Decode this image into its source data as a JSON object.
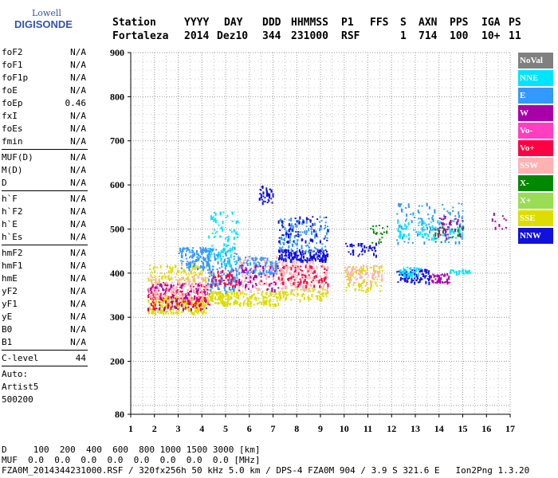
{
  "logo": {
    "line1": "Lowell",
    "line2": "DIGISONDE"
  },
  "header": {
    "labels": [
      "Station",
      "YYYY",
      "DAY",
      "DDD",
      "HHMMSS",
      "P1",
      "FFS",
      "S",
      "AXN",
      "PPS",
      "IGA",
      "PS"
    ],
    "values": [
      "Fortaleza",
      "2014",
      "Dez10",
      "344",
      "231000",
      "RSF",
      "1",
      "714",
      "100",
      "10+",
      "11"
    ]
  },
  "params": {
    "group1": [
      {
        "name": "foF2",
        "value": "N/A"
      },
      {
        "name": "foF1",
        "value": "N/A"
      },
      {
        "name": "foF1p",
        "value": "N/A"
      },
      {
        "name": "foE",
        "value": "N/A"
      },
      {
        "name": "foEp",
        "value": "0.46"
      },
      {
        "name": "fxI",
        "value": "N/A"
      },
      {
        "name": "foEs",
        "value": "N/A"
      },
      {
        "name": "fmin",
        "value": "N/A"
      }
    ],
    "group2": [
      {
        "name": "MUF(D)",
        "value": "N/A"
      },
      {
        "name": "M(D)",
        "value": "N/A"
      },
      {
        "name": "D",
        "value": "N/A"
      }
    ],
    "group3": [
      {
        "name": "h`F",
        "value": "N/A"
      },
      {
        "name": "h`F2",
        "value": "N/A"
      },
      {
        "name": "h`E",
        "value": "N/A"
      },
      {
        "name": "h`Es",
        "value": "N/A"
      }
    ],
    "group4": [
      {
        "name": "hmF2",
        "value": "N/A"
      },
      {
        "name": "hmF1",
        "value": "N/A"
      },
      {
        "name": "hmE",
        "value": "N/A"
      },
      {
        "name": "yF2",
        "value": "N/A"
      },
      {
        "name": "yF1",
        "value": "N/A"
      },
      {
        "name": "yE",
        "value": "N/A"
      },
      {
        "name": "B0",
        "value": "N/A"
      },
      {
        "name": "B1",
        "value": "N/A"
      }
    ],
    "clevel": {
      "name": "C-level",
      "value": "44"
    },
    "auto": [
      "Auto:",
      "Artist5",
      "500200"
    ]
  },
  "legend": [
    {
      "label": "NoVal",
      "color": "#808080"
    },
    {
      "label": "NNE",
      "color": "#00e5ff"
    },
    {
      "label": "E",
      "color": "#3399ff"
    },
    {
      "label": "W",
      "color": "#aa00aa"
    },
    {
      "label": "Vo-",
      "color": "#ff3fbf"
    },
    {
      "label": "Vo+",
      "color": "#ff0044"
    },
    {
      "label": "SSW",
      "color": "#ffb2b2"
    },
    {
      "label": "X-",
      "color": "#008800"
    },
    {
      "label": "X+",
      "color": "#99dd55"
    },
    {
      "label": "SSE",
      "color": "#dddd00"
    },
    {
      "label": "NNW",
      "color": "#1111dd"
    }
  ],
  "footer": {
    "d_line": "D     100  200  400  600  800 1000 1500 3000 [km]",
    "muf_line": "MUF  0.0  0.0  0.0  0.0  0.0  0.0  0.0  0.0 [MHz]",
    "file_line": "FZA0M_2014344231000.RSF / 320fx256h 50 kHz 5.0 km / DPS-4 FZA0M 904 / 3.9 S 321.6 E   Ion2Png 1.3.20"
  },
  "chart_data": {
    "type": "scatter",
    "xlim": [
      1,
      17
    ],
    "ylim": [
      80,
      900
    ],
    "x_ticks": [
      1,
      2,
      3,
      4,
      5,
      6,
      7,
      8,
      9,
      10,
      11,
      12,
      13,
      14,
      15,
      16,
      17
    ],
    "y_ticks": [
      80,
      200,
      300,
      400,
      500,
      600,
      700,
      800,
      900
    ],
    "grid": true,
    "clusters": [
      {
        "x": [
          1.7,
          4.2
        ],
        "y": [
          310,
          350
        ],
        "color": "#dddd00",
        "n": 260
      },
      {
        "x": [
          1.7,
          4.3
        ],
        "y": [
          320,
          380
        ],
        "color": "#ff0044",
        "n": 140
      },
      {
        "x": [
          1.7,
          4.3
        ],
        "y": [
          320,
          380
        ],
        "color": "#aa00aa",
        "n": 110
      },
      {
        "x": [
          1.7,
          4.3
        ],
        "y": [
          340,
          395
        ],
        "color": "#ffb2b2",
        "n": 140
      },
      {
        "x": [
          1.7,
          4.3
        ],
        "y": [
          385,
          420
        ],
        "color": "#dddd00",
        "n": 90
      },
      {
        "x": [
          3.0,
          4.3
        ],
        "y": [
          410,
          460
        ],
        "color": "#3399ff",
        "n": 120
      },
      {
        "x": [
          4.2,
          5.5
        ],
        "y": [
          330,
          360
        ],
        "color": "#dddd00",
        "n": 120
      },
      {
        "x": [
          4.2,
          5.5
        ],
        "y": [
          360,
          460
        ],
        "color": "#3399ff",
        "n": 160
      },
      {
        "x": [
          4.2,
          5.5
        ],
        "y": [
          420,
          540
        ],
        "color": "#00e5ff",
        "n": 90
      },
      {
        "x": [
          4.3,
          5.5
        ],
        "y": [
          370,
          410
        ],
        "color": "#ff0044",
        "n": 50
      },
      {
        "x": [
          5.5,
          7.2
        ],
        "y": [
          330,
          360
        ],
        "color": "#dddd00",
        "n": 90
      },
      {
        "x": [
          5.5,
          7.2
        ],
        "y": [
          360,
          440
        ],
        "color": "#ffb2b2",
        "n": 110
      },
      {
        "x": [
          5.5,
          7.2
        ],
        "y": [
          400,
          440
        ],
        "color": "#3399ff",
        "n": 90
      },
      {
        "x": [
          5.5,
          7.2
        ],
        "y": [
          360,
          420
        ],
        "color": "#aa00aa",
        "n": 60
      },
      {
        "x": [
          6.4,
          7.0
        ],
        "y": [
          560,
          600
        ],
        "color": "#1111dd",
        "n": 40
      },
      {
        "x": [
          7.2,
          9.3
        ],
        "y": [
          340,
          370
        ],
        "color": "#dddd00",
        "n": 70
      },
      {
        "x": [
          7.2,
          9.3
        ],
        "y": [
          360,
          430
        ],
        "color": "#ffb2b2",
        "n": 140
      },
      {
        "x": [
          7.2,
          9.3
        ],
        "y": [
          370,
          420
        ],
        "color": "#ff0044",
        "n": 80
      },
      {
        "x": [
          7.2,
          9.3
        ],
        "y": [
          430,
          455
        ],
        "color": "#1111dd",
        "n": 150
      },
      {
        "x": [
          7.2,
          9.3
        ],
        "y": [
          450,
          530
        ],
        "color": "#3399ff",
        "n": 120
      },
      {
        "x": [
          7.2,
          9.3
        ],
        "y": [
          470,
          530
        ],
        "color": "#1111dd",
        "n": 60
      },
      {
        "x": [
          10.0,
          11.6
        ],
        "y": [
          360,
          420
        ],
        "color": "#dddd00",
        "n": 80
      },
      {
        "x": [
          10.0,
          11.6
        ],
        "y": [
          380,
          420
        ],
        "color": "#ffb2b2",
        "n": 60
      },
      {
        "x": [
          10.0,
          11.6
        ],
        "y": [
          440,
          470
        ],
        "color": "#1111dd",
        "n": 40
      },
      {
        "x": [
          11.0,
          11.8
        ],
        "y": [
          470,
          510
        ],
        "color": "#008800",
        "n": 20
      },
      {
        "x": [
          12.2,
          13.6
        ],
        "y": [
          380,
          410
        ],
        "color": "#1111dd",
        "n": 80
      },
      {
        "x": [
          12.3,
          13.2
        ],
        "y": [
          395,
          415
        ],
        "color": "#00e5ff",
        "n": 40
      },
      {
        "x": [
          13.6,
          14.4
        ],
        "y": [
          380,
          400
        ],
        "color": "#aa00aa",
        "n": 40
      },
      {
        "x": [
          14.4,
          15.3
        ],
        "y": [
          400,
          410
        ],
        "color": "#00e5ff",
        "n": 25
      },
      {
        "x": [
          12.2,
          15.0
        ],
        "y": [
          470,
          560
        ],
        "color": "#3399ff",
        "n": 110
      },
      {
        "x": [
          12.2,
          15.0
        ],
        "y": [
          480,
          520
        ],
        "color": "#00e5ff",
        "n": 80
      },
      {
        "x": [
          13.8,
          15.0
        ],
        "y": [
          480,
          530
        ],
        "color": "#aa00aa",
        "n": 40
      },
      {
        "x": [
          13.8,
          15.0
        ],
        "y": [
          470,
          510
        ],
        "color": "#008800",
        "n": 20
      },
      {
        "x": [
          16.2,
          16.8
        ],
        "y": [
          500,
          540
        ],
        "color": "#aa00aa",
        "n": 10
      }
    ]
  }
}
